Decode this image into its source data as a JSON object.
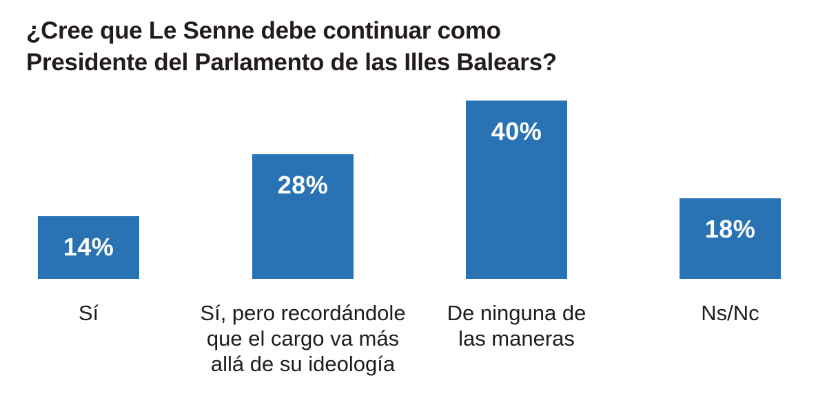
{
  "header": {
    "title": "¿Cree que Le Senne debe continuar como\nPresidente del Parlamento de las Illes Balears?"
  },
  "chart_data": {
    "type": "bar",
    "title": "¿Cree que Le Senne debe continuar como Presidente del Parlamento de las Illes Balears?",
    "categories": [
      "Sí",
      "Sí, pero recordándole\nque el cargo va más\nallá de su ideología",
      "De ninguna de\nlas maneras",
      "Ns/Nc"
    ],
    "values": [
      14,
      28,
      40,
      18
    ],
    "value_labels": [
      "14%",
      "28%",
      "40%",
      "18%"
    ],
    "unit": "%",
    "ylim": [
      0,
      40
    ],
    "grid": false,
    "legend": false,
    "orientation": "vertical",
    "colors": {
      "bar": "#2973B4",
      "value_label": "#ffffff",
      "title": "#221c1a",
      "category_label": "#1d1d1b",
      "background": "#ffffff"
    }
  }
}
